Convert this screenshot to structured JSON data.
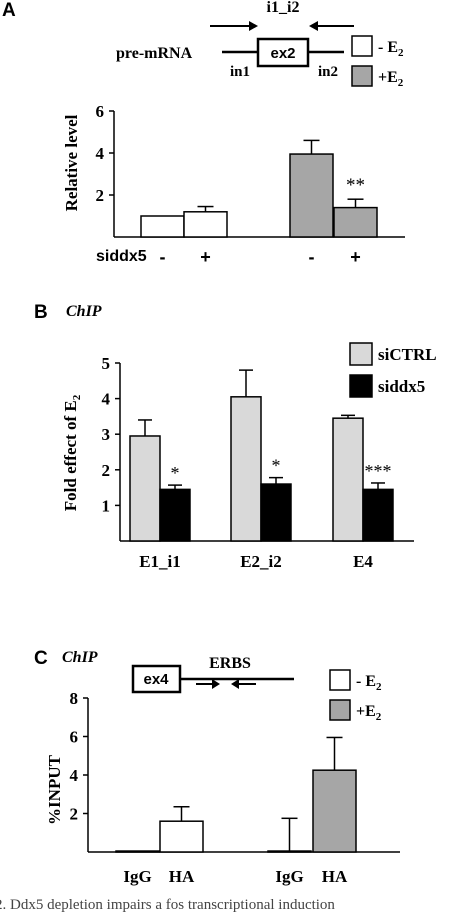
{
  "figure": {
    "caption": "2. Ddx5 depletion impairs a fos transcriptional induction",
    "colors": {
      "white": "#ffffff",
      "gray": "#a6a6a6",
      "light": "#d9d9d9",
      "black": "#000000"
    }
  },
  "chart_data": [
    {
      "type": "bar",
      "panel_letter": "A",
      "diagram": {
        "pre_label": "pre-mRNA",
        "exon": "ex2",
        "amplicon": "i1_i2",
        "intron_left": "in1",
        "intron_right": "in2"
      },
      "ylabel": "Relative level",
      "ylim": [
        0,
        6
      ],
      "yticks": [
        2,
        4,
        6
      ],
      "tick_labels": [
        "2",
        "4",
        "6"
      ],
      "legend": [
        {
          "label": "- E",
          "sub": "2",
          "color": "#ffffff"
        },
        {
          "label": "+E",
          "sub": "2",
          "color": "#a6a6a6"
        }
      ],
      "row_label": "siddx5",
      "conditions": [
        "-",
        "+",
        "-",
        "+"
      ],
      "values": [
        1.0,
        1.2,
        3.95,
        1.4
      ],
      "errors": [
        0.0,
        0.25,
        0.65,
        0.4
      ],
      "series_index": [
        0,
        0,
        1,
        1
      ],
      "annotations": [
        "",
        "",
        "",
        "**"
      ]
    },
    {
      "type": "bar",
      "panel_letter": "B",
      "panel_title": "ChIP",
      "ylabel": "Fold effect of E",
      "ylabel_sub": "2",
      "ylim": [
        0,
        5
      ],
      "yticks": [
        1,
        2,
        3,
        4,
        5
      ],
      "tick_labels": [
        "1",
        "2",
        "3",
        "4",
        "5"
      ],
      "categories": [
        "E1_i1",
        "E2_i2",
        "E4"
      ],
      "series": [
        {
          "name": "siCTRL",
          "values": [
            2.95,
            4.05,
            3.45
          ],
          "errors": [
            0.45,
            0.75,
            0.08
          ],
          "color": "#d9d9d9",
          "annotations": [
            "",
            "",
            ""
          ]
        },
        {
          "name": "siddx5",
          "values": [
            1.45,
            1.6,
            1.45
          ],
          "errors": [
            0.12,
            0.18,
            0.18
          ],
          "color": "#000000",
          "annotations": [
            "*",
            "*",
            "***"
          ]
        }
      ]
    },
    {
      "type": "bar",
      "panel_letter": "C",
      "panel_title": "ChIP",
      "diagram": {
        "exon": "ex4",
        "site": "ERBS"
      },
      "ylabel": "%INPUT",
      "ylim": [
        0,
        8
      ],
      "yticks": [
        2,
        4,
        6,
        8
      ],
      "tick_labels": [
        "2",
        "4",
        "6",
        "8"
      ],
      "legend": [
        {
          "label": "- E",
          "sub": "2",
          "color": "#ffffff"
        },
        {
          "label": "+E",
          "sub": "2",
          "color": "#a6a6a6"
        }
      ],
      "categories": [
        "IgG",
        "HA",
        "IgG",
        "HA"
      ],
      "values": [
        0.05,
        1.6,
        0.05,
        4.25
      ],
      "errors": [
        0.0,
        0.75,
        1.7,
        1.7
      ],
      "series_index": [
        0,
        0,
        1,
        1
      ]
    }
  ]
}
